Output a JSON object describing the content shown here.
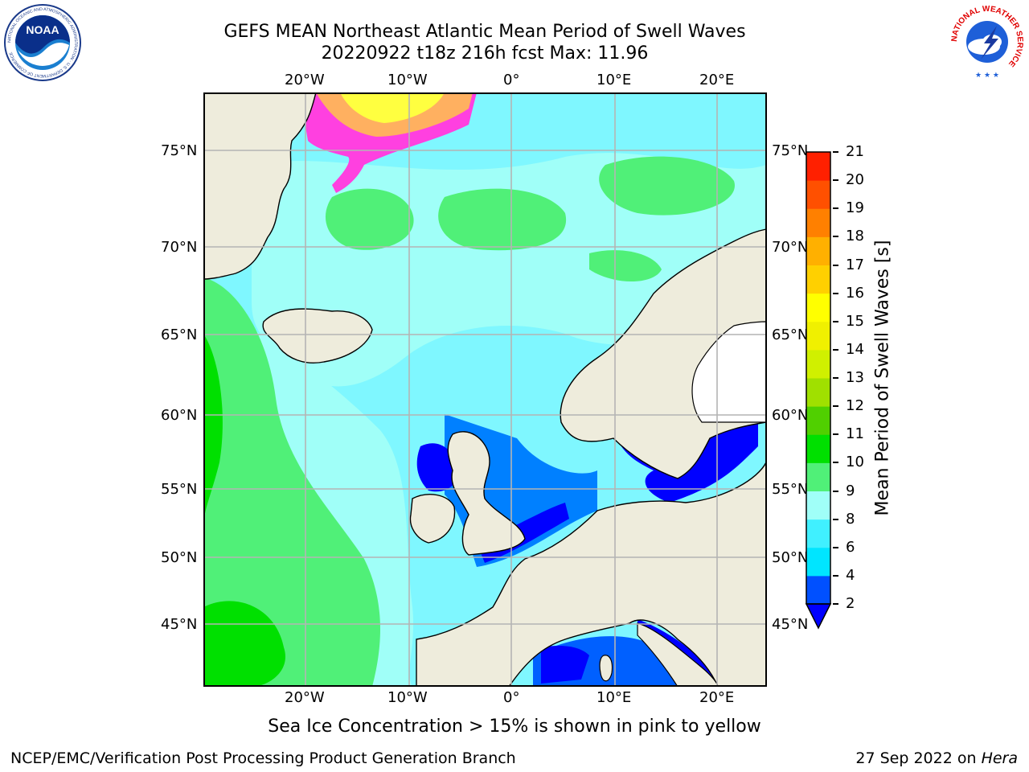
{
  "title_line1": "GEFS MEAN Northeast Atlantic Mean Period of Swell Waves",
  "title_line2": "20220922 t18z 216h fcst   Max: 11.96",
  "axes": {
    "lon_labels": [
      "20°W",
      "10°W",
      "0°",
      "10°E",
      "20°E"
    ],
    "lat_labels": [
      "75°N",
      "70°N",
      "65°N",
      "60°N",
      "55°N",
      "50°N",
      "45°N"
    ]
  },
  "colorbar": {
    "label": "Mean Period of Swell Waves [s]",
    "ticks": [
      "2",
      "4",
      "6",
      "8",
      "9",
      "10",
      "11",
      "12",
      "13",
      "14",
      "15",
      "16",
      "17",
      "18",
      "19",
      "20",
      "21"
    ],
    "colors": [
      "#0050ff",
      "#00e5ff",
      "#40f0ff",
      "#a0fff8",
      "#50f078",
      "#00e000",
      "#50d000",
      "#a0e000",
      "#d0f000",
      "#f0f000",
      "#ffff00",
      "#ffd000",
      "#ffb000",
      "#ff8000",
      "#ff5000",
      "#ff2000"
    ],
    "under_color": "#0000ff"
  },
  "note": "Sea Ice Concentration > 15% is shown in pink to yellow",
  "footer_left": "NCEP/EMC/Verification Post Processing Product Generation Branch",
  "footer_right_date": "27 Sep 2022 on ",
  "footer_right_machine": "Hera",
  "logos": {
    "noaa_text": "NOAA",
    "noaa_ring": "NATIONAL OCEANIC AND ATMOSPHERIC ADMINISTRATION · U.S. DEPARTMENT OF COMMERCE",
    "nws_ring": "NATIONAL WEATHER SERVICE"
  },
  "map_colors": {
    "land": "#eeecdc",
    "ocean": "#7ff7ff",
    "grid": "#b4b4b4"
  }
}
